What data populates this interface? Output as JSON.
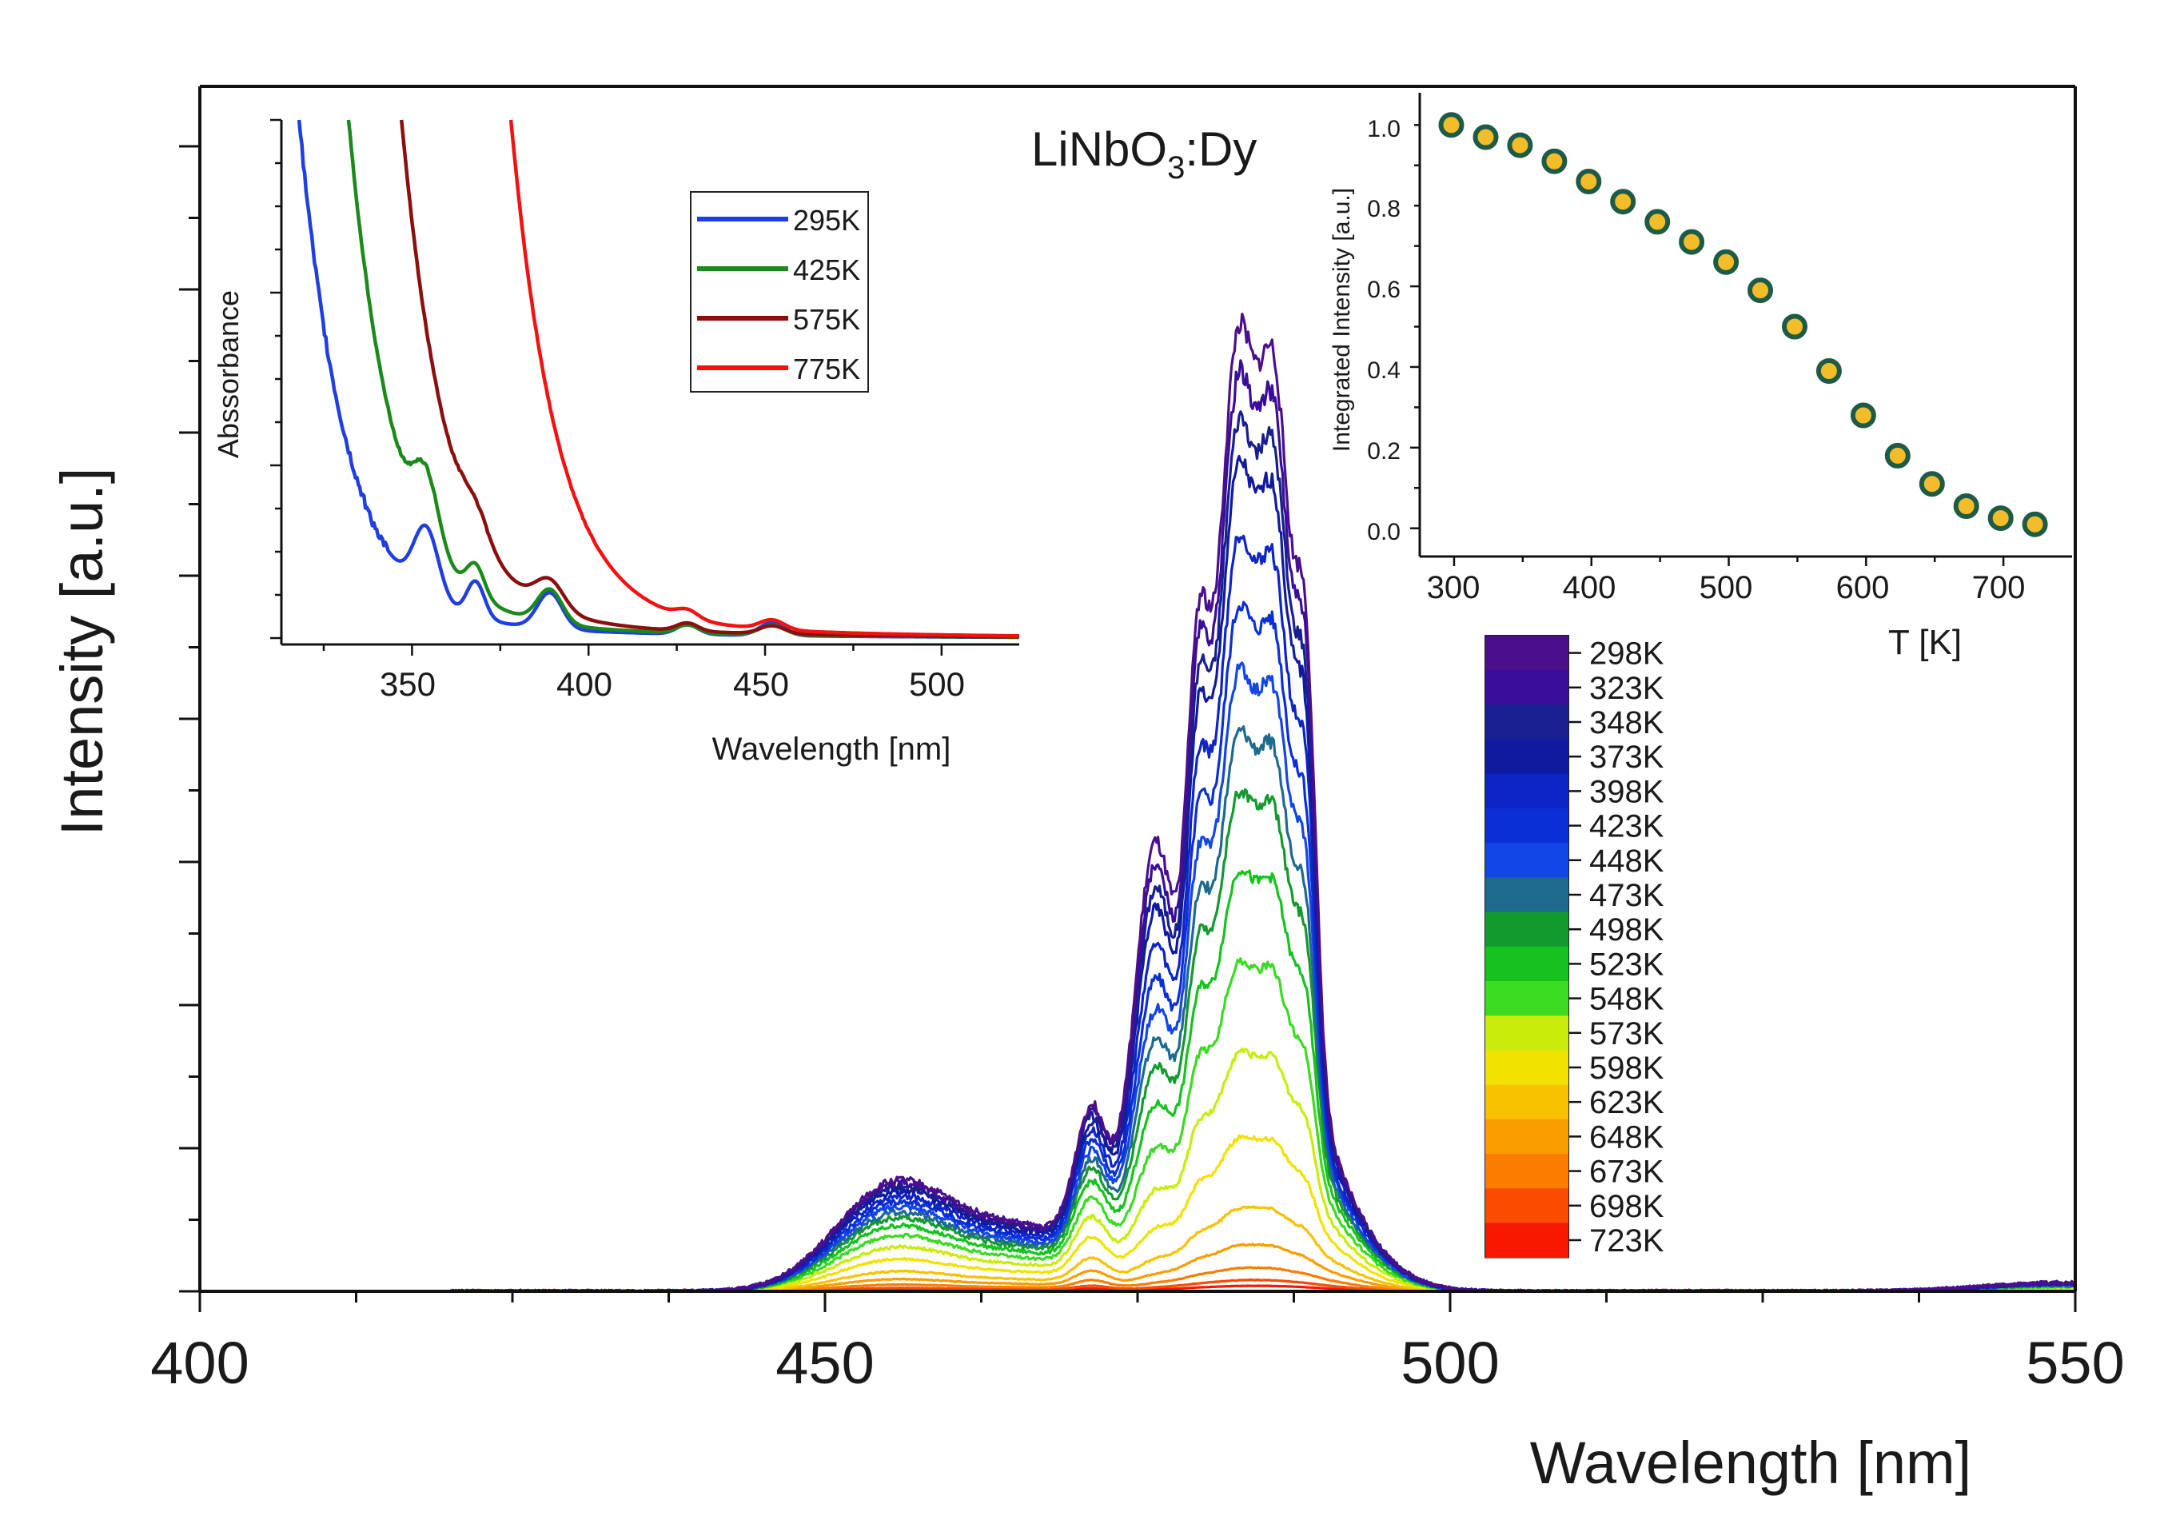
{
  "chart_data": [
    {
      "type": "line",
      "xlabel": "Wavelength [nm]",
      "ylabel": "Intensity [a.u.]",
      "xlim": [
        400,
        550
      ],
      "x_ticks": [
        "400",
        "450",
        "500",
        "550"
      ],
      "y_tick_labels": "none",
      "annotation": "LiNbO3:Dy",
      "legend": "colorbar, center-right",
      "temperatures": [
        "298K",
        "323K",
        "348K",
        "373K",
        "398K",
        "423K",
        "448K",
        "473K",
        "498K",
        "523K",
        "548K",
        "573K",
        "598K",
        "623K",
        "648K",
        "673K",
        "698K",
        "723K"
      ],
      "colors": [
        "#4b0f8c",
        "#3a0d9a",
        "#18208f",
        "#101a9f",
        "#0d24c7",
        "#0a2fd6",
        "#1346e6",
        "#1d6a8e",
        "#139a2e",
        "#16c31e",
        "#3bdb22",
        "#c9ec0a",
        "#f2e200",
        "#f8c200",
        "#f99d00",
        "#fb7d00",
        "#fb4b00",
        "#f81800"
      ],
      "peak_positions_nm": [
        455,
        476,
        480,
        483,
        486,
        488
      ],
      "series_relative_peak": [
        1.0,
        0.97,
        0.94,
        0.91,
        0.86,
        0.81,
        0.76,
        0.71,
        0.66,
        0.59,
        0.5,
        0.4,
        0.29,
        0.18,
        0.11,
        0.06,
        0.03,
        0.015
      ]
    },
    {
      "type": "line",
      "xlabel": "Wavelength [nm]",
      "ylabel": "Abssorbance",
      "xlim": [
        313,
        522
      ],
      "x_ticks": [
        "350",
        "400",
        "450",
        "500"
      ],
      "legend": "top-right",
      "series": [
        {
          "name": "295K",
          "color": "#1f3fe0",
          "onset_nm": 318
        },
        {
          "name": "425K",
          "color": "#1a8a1a",
          "onset_nm": 332
        },
        {
          "name": "575K",
          "color": "#8b0f0f",
          "onset_nm": 347
        },
        {
          "name": "775K",
          "color": "#f21212",
          "onset_nm": 378
        }
      ],
      "peaks_nm": [
        354,
        368,
        389,
        428,
        452
      ]
    },
    {
      "type": "scatter",
      "xlabel": "T [K]",
      "ylabel": "Integrated Intensity [a.u.]",
      "xlim": [
        275,
        750
      ],
      "ylim": [
        -0.07,
        1.08
      ],
      "x_ticks": [
        "300",
        "400",
        "500",
        "600",
        "700"
      ],
      "y_ticks": [
        "0.0",
        "0.2",
        "0.4",
        "0.6",
        "0.8",
        "1.0"
      ],
      "marker_fill": "#f3bd2a",
      "marker_edge": "#1e5b46",
      "points": [
        [
          298,
          1.0
        ],
        [
          323,
          0.97
        ],
        [
          348,
          0.95
        ],
        [
          373,
          0.91
        ],
        [
          398,
          0.86
        ],
        [
          423,
          0.81
        ],
        [
          448,
          0.76
        ],
        [
          473,
          0.71
        ],
        [
          498,
          0.66
        ],
        [
          523,
          0.59
        ],
        [
          548,
          0.5
        ],
        [
          573,
          0.39
        ],
        [
          598,
          0.28
        ],
        [
          623,
          0.18
        ],
        [
          648,
          0.11
        ],
        [
          673,
          0.055
        ],
        [
          698,
          0.025
        ],
        [
          723,
          0.01
        ]
      ]
    }
  ]
}
